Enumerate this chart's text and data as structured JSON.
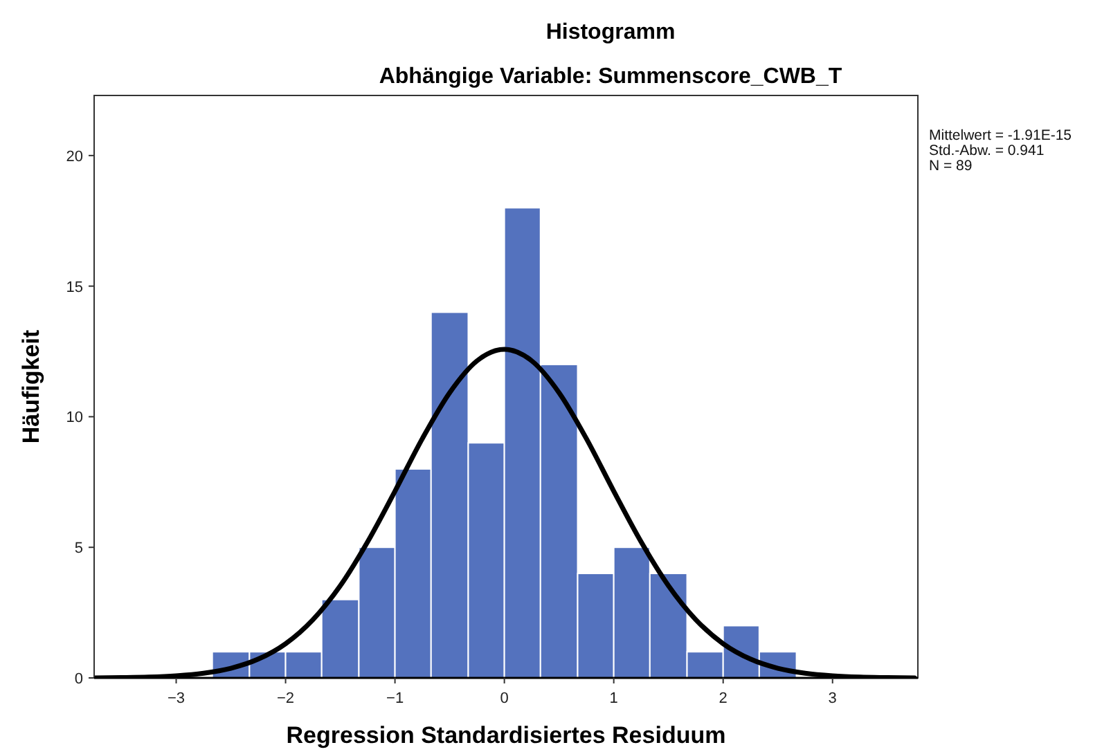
{
  "chart_data": {
    "type": "histogram",
    "title": "Histogramm",
    "subtitle": "Abhängige Variable: Summenscore_CWB_T",
    "xlabel": "Regression Standardisiertes Residuum",
    "ylabel": "Häufigkeit",
    "bins": [
      -2.67,
      -2.33,
      -2,
      -1.67,
      -1.33,
      -1,
      -0.67,
      -0.33,
      0,
      0.33,
      0.67,
      1,
      1.33,
      1.67,
      2,
      2.33,
      2.67
    ],
    "values": [
      1,
      1,
      1,
      3,
      5,
      8,
      14,
      9,
      18,
      12,
      4,
      5,
      4,
      1,
      2,
      1
    ],
    "color": "#5472be",
    "series": [
      {
        "type": "line",
        "color": "#000000",
        "x": [
          -3.75,
          -3.5,
          -3.25,
          -3,
          -2.75,
          -2.5,
          -2.25,
          -2,
          -1.75,
          -1.5,
          -1.25,
          -1,
          -0.75,
          -0.5,
          -0.25,
          0,
          0.25,
          0.5,
          0.75,
          1,
          1.25,
          1.5,
          1.75,
          2,
          2.25,
          2.5,
          2.75,
          3,
          3.25,
          3.5,
          3.75
        ],
        "values": [
          0,
          0.01,
          0.03,
          0.08,
          0.18,
          0.37,
          0.72,
          1.31,
          2.23,
          3.53,
          5.21,
          7.15,
          9.16,
          10.92,
          12.14,
          12.58,
          12.14,
          10.92,
          9.16,
          7.15,
          5.21,
          3.53,
          2.23,
          1.31,
          0.72,
          0.37,
          0.18,
          0.08,
          0.03,
          0.01,
          0
        ]
      }
    ],
    "xlim": [
      -3.75,
      3.78
    ],
    "ylim": [
      0,
      22.3
    ],
    "xticks": [
      {
        "value": -3,
        "label": "−3"
      },
      {
        "value": -2,
        "label": "−2"
      },
      {
        "value": -1,
        "label": "−1"
      },
      0,
      1,
      2,
      3
    ],
    "yticks": [
      0,
      5,
      10,
      15,
      20
    ],
    "annotations": [
      "Mittelwert = -1.91E-15",
      "Std.-Abw. = 0.941",
      "N = 89"
    ],
    "grid": false,
    "line_style": "solid",
    "marker": "none"
  }
}
